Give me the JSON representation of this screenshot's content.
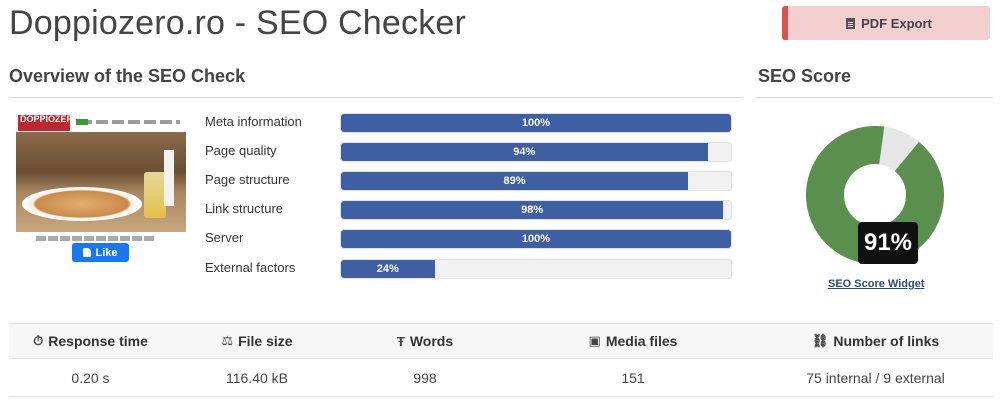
{
  "header": {
    "title": "Doppiozero.ro - SEO Checker",
    "pdf_export_label": "PDF Export"
  },
  "overview": {
    "title": "Overview of the SEO Check",
    "thumbnail": {
      "logo_text": "DOPPIOZERO",
      "like_label": "Like"
    },
    "metrics": [
      {
        "label": "Meta information",
        "percent": 100,
        "percent_label": "100%"
      },
      {
        "label": "Page quality",
        "percent": 94,
        "percent_label": "94%"
      },
      {
        "label": "Page structure",
        "percent": 89,
        "percent_label": "89%"
      },
      {
        "label": "Link structure",
        "percent": 98,
        "percent_label": "98%"
      },
      {
        "label": "Server",
        "percent": 100,
        "percent_label": "100%"
      },
      {
        "label": "External factors",
        "percent": 24,
        "percent_label": "24%"
      }
    ]
  },
  "score": {
    "title": "SEO Score",
    "value": 91,
    "value_label": "91%",
    "widget_link": "SEO Score Widget",
    "colors": {
      "filled": "#5b8f4e",
      "empty": "#e6e6e6"
    }
  },
  "stats": {
    "headers": [
      {
        "icon": "stopwatch-icon",
        "glyph": "⏱",
        "label": "Response time"
      },
      {
        "icon": "scale-icon",
        "glyph": "⚖",
        "label": "File size"
      },
      {
        "icon": "text-icon",
        "glyph": "Ŧ",
        "label": "Words"
      },
      {
        "icon": "image-icon",
        "glyph": "▣",
        "label": "Media files"
      },
      {
        "icon": "link-icon",
        "glyph": "⛓",
        "label": "Number of links"
      }
    ],
    "values": [
      "0.20 s",
      "116.40 kB",
      "998",
      "151",
      "75 internal / 9 external"
    ]
  },
  "colors": {
    "bar_fill": "#3f5fa4",
    "pdf_accent": "#d9534f",
    "pdf_bg": "#f3cfd0"
  }
}
